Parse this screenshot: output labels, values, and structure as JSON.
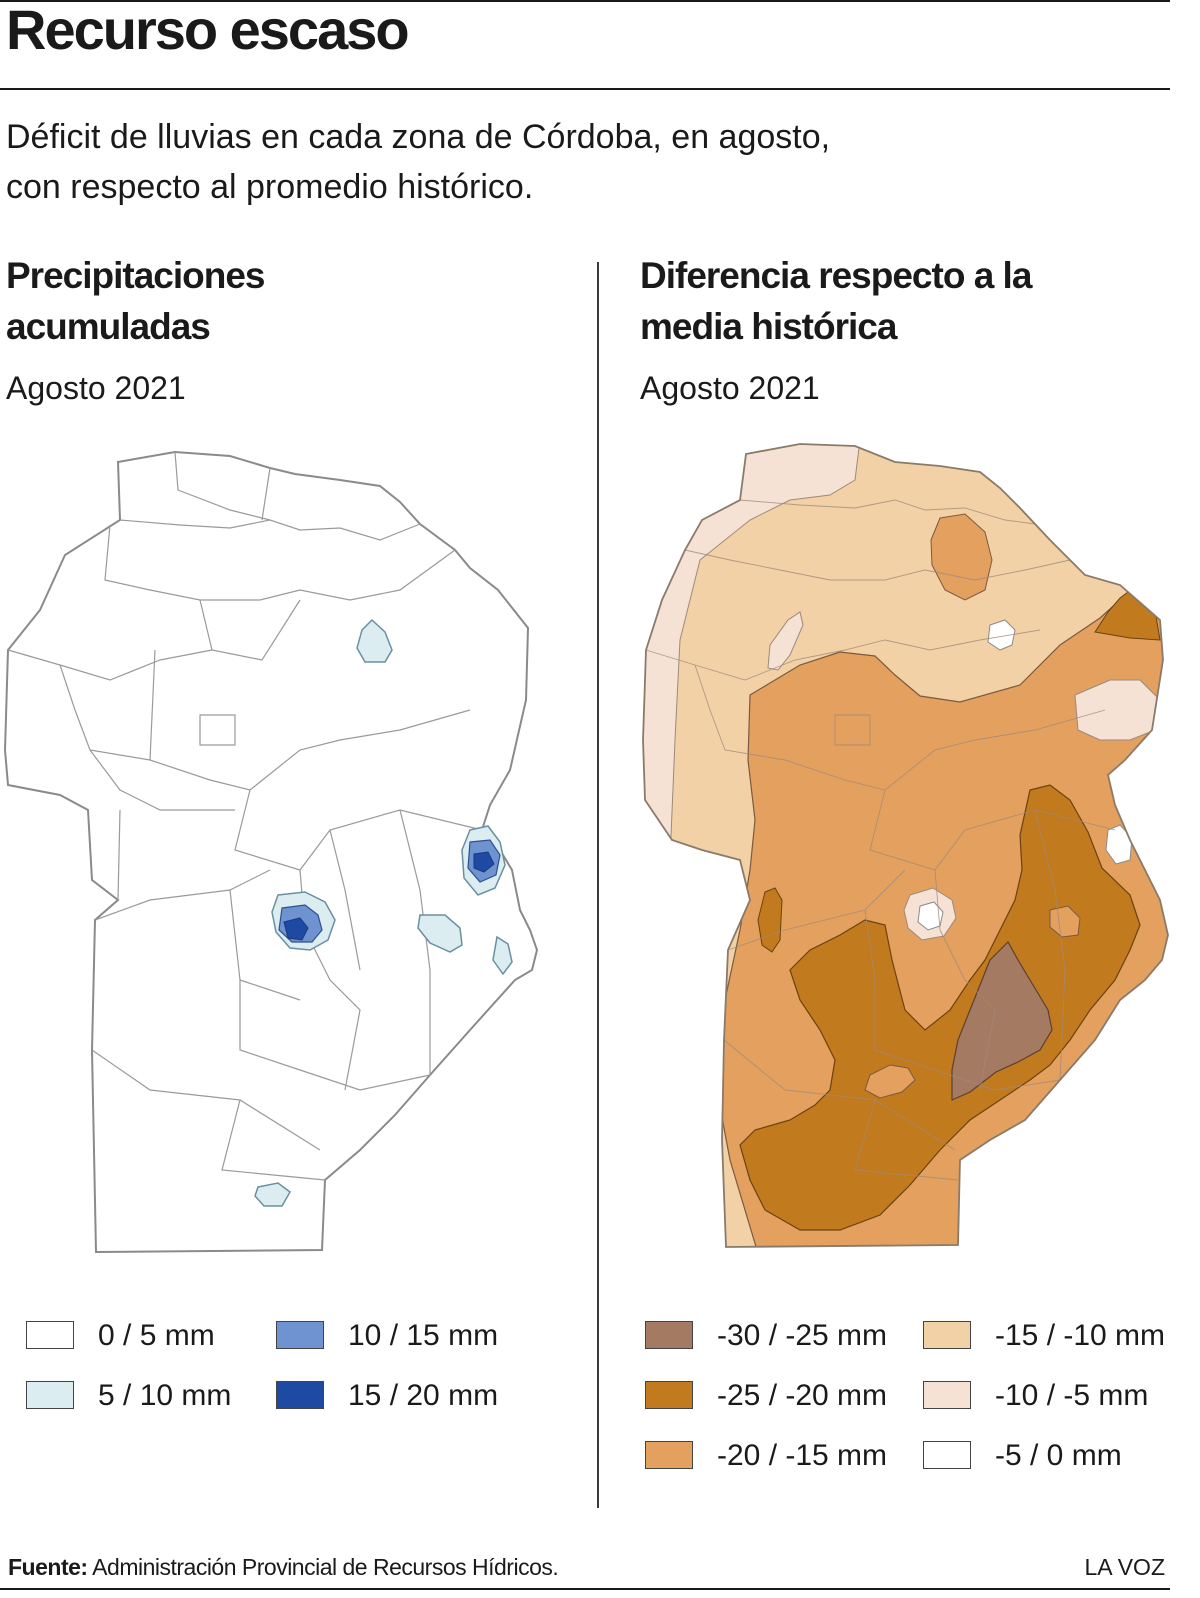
{
  "header": {
    "title": "Recurso escaso",
    "subtitle_line1": "Déficit de lluvias en cada zona de Córdoba, en agosto,",
    "subtitle_line2": "con respecto al promedio histórico."
  },
  "left_panel": {
    "title_line1": "Precipitaciones",
    "title_line2": "acumuladas",
    "date": "Agosto 2021",
    "legend": [
      {
        "label": "0 / 5 mm",
        "color": "#ffffff"
      },
      {
        "label": "5 / 10 mm",
        "color": "#dcedf1"
      },
      {
        "label": "10 / 15 mm",
        "color": "#6f93d0"
      },
      {
        "label": "15 / 20 mm",
        "color": "#1f4aa3"
      }
    ]
  },
  "right_panel": {
    "title_line1": "Diferencia respecto a la",
    "title_line2": "media histórica",
    "date": "Agosto 2021",
    "legend": [
      {
        "label": "-30 / -25 mm",
        "color": "#a57a63"
      },
      {
        "label": "-25 / -20 mm",
        "color": "#c17a1e"
      },
      {
        "label": "-20 / -15 mm",
        "color": "#e3a05f"
      },
      {
        "label": "-15 / -10 mm",
        "color": "#f2d1a6"
      },
      {
        "label": "-10 / -5 mm",
        "color": "#f6e2d4"
      },
      {
        "label": "-5 / 0 mm",
        "color": "#ffffff"
      }
    ]
  },
  "footer": {
    "source_label": "Fuente:",
    "source_text": " Administración Provincial de Recursos Hídricos.",
    "brand": "LA VOZ"
  }
}
